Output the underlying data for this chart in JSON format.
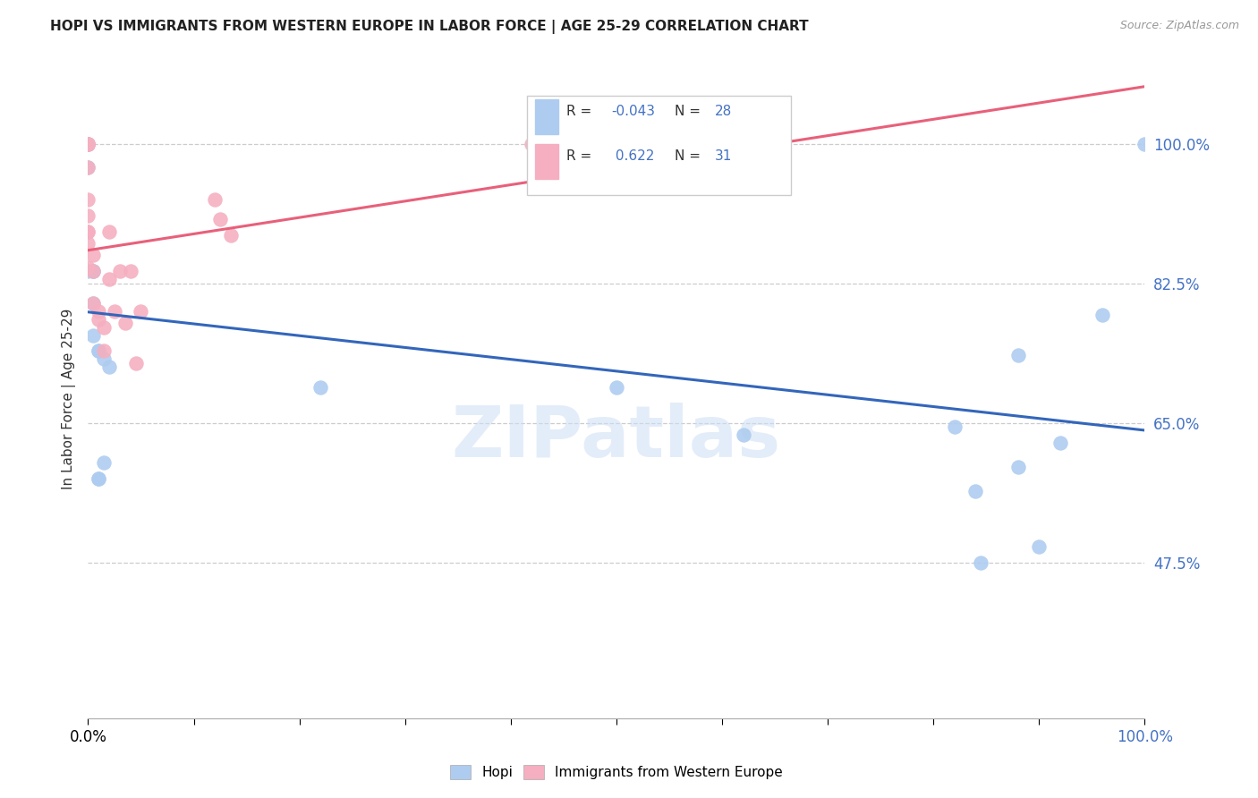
{
  "title": "HOPI VS IMMIGRANTS FROM WESTERN EUROPE IN LABOR FORCE | AGE 25-29 CORRELATION CHART",
  "source_text": "Source: ZipAtlas.com",
  "ylabel": "In Labor Force | Age 25-29",
  "xlim": [
    0.0,
    1.0
  ],
  "ylim": [
    0.28,
    1.08
  ],
  "yticks": [
    0.475,
    0.65,
    0.825,
    1.0
  ],
  "ytick_labels": [
    "47.5%",
    "65.0%",
    "82.5%",
    "100.0%"
  ],
  "xticks": [
    0.0,
    0.1,
    0.2,
    0.3,
    0.4,
    0.5,
    0.6,
    0.7,
    0.8,
    0.9,
    1.0
  ],
  "hopi_color": "#aeccf0",
  "immigrants_color": "#f5afc0",
  "hopi_line_color": "#3366bb",
  "immigrants_line_color": "#e8607a",
  "hopi_R": -0.043,
  "hopi_N": 28,
  "immigrants_R": 0.622,
  "immigrants_N": 31,
  "watermark": "ZIPatlas",
  "hopi_x": [
    0.0,
    0.0,
    0.0,
    0.0,
    0.0,
    0.005,
    0.005,
    0.005,
    0.005,
    0.01,
    0.01,
    0.01,
    0.01,
    0.015,
    0.015,
    0.02,
    0.22,
    0.5,
    0.62,
    0.82,
    0.84,
    0.845,
    0.88,
    0.88,
    0.9,
    0.92,
    0.96,
    1.0
  ],
  "hopi_y": [
    1.0,
    1.0,
    1.0,
    0.97,
    0.84,
    0.84,
    0.84,
    0.8,
    0.76,
    0.74,
    0.74,
    0.58,
    0.58,
    0.6,
    0.73,
    0.72,
    0.695,
    0.695,
    0.635,
    0.645,
    0.565,
    0.475,
    0.595,
    0.735,
    0.495,
    0.625,
    0.785,
    1.0
  ],
  "immigrants_x": [
    0.0,
    0.0,
    0.0,
    0.0,
    0.0,
    0.0,
    0.0,
    0.0,
    0.0,
    0.0,
    0.0,
    0.0,
    0.005,
    0.005,
    0.005,
    0.01,
    0.01,
    0.015,
    0.015,
    0.02,
    0.02,
    0.025,
    0.03,
    0.035,
    0.04,
    0.045,
    0.05,
    0.12,
    0.125,
    0.135,
    0.42
  ],
  "immigrants_y": [
    1.0,
    1.0,
    1.0,
    1.0,
    1.0,
    0.97,
    0.93,
    0.91,
    0.89,
    0.89,
    0.875,
    0.845,
    0.86,
    0.84,
    0.8,
    0.79,
    0.78,
    0.77,
    0.74,
    0.89,
    0.83,
    0.79,
    0.84,
    0.775,
    0.84,
    0.725,
    0.79,
    0.93,
    0.905,
    0.885,
    1.0
  ]
}
